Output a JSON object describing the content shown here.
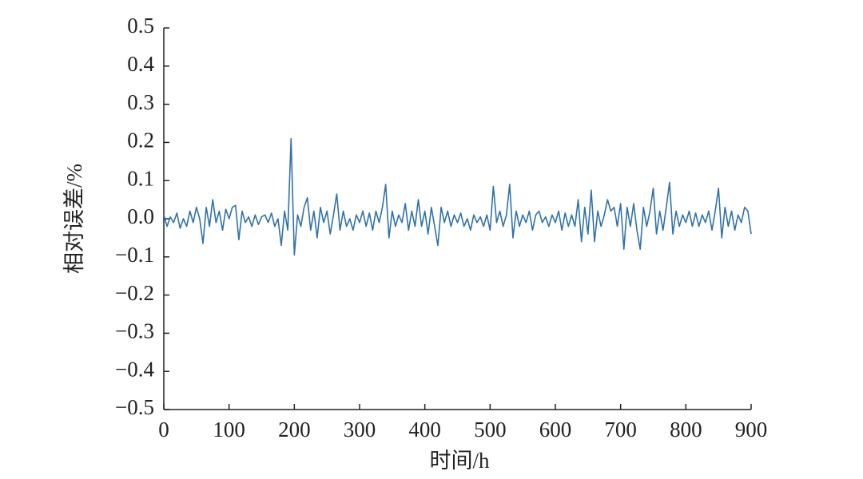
{
  "chart_data": {
    "type": "line",
    "xlabel": "时间/h",
    "ylabel": "相对误差/%",
    "color": "#2f72aa",
    "x": [
      0,
      5,
      10,
      15,
      20,
      25,
      30,
      35,
      40,
      45,
      50,
      55,
      60,
      65,
      70,
      75,
      80,
      85,
      90,
      95,
      100,
      105,
      110,
      115,
      120,
      125,
      130,
      135,
      140,
      145,
      150,
      155,
      160,
      165,
      170,
      175,
      180,
      185,
      190,
      195,
      200,
      205,
      210,
      215,
      220,
      225,
      230,
      235,
      240,
      245,
      250,
      255,
      260,
      265,
      270,
      275,
      280,
      285,
      290,
      295,
      300,
      305,
      310,
      315,
      320,
      325,
      330,
      335,
      340,
      345,
      350,
      355,
      360,
      365,
      370,
      375,
      380,
      385,
      390,
      395,
      400,
      405,
      410,
      415,
      420,
      425,
      430,
      435,
      440,
      445,
      450,
      455,
      460,
      465,
      470,
      475,
      480,
      485,
      490,
      495,
      500,
      505,
      510,
      515,
      520,
      525,
      530,
      535,
      540,
      545,
      550,
      555,
      560,
      565,
      570,
      575,
      580,
      585,
      590,
      595,
      600,
      605,
      610,
      615,
      620,
      625,
      630,
      635,
      640,
      645,
      650,
      655,
      660,
      665,
      670,
      675,
      680,
      685,
      690,
      695,
      700,
      705,
      710,
      715,
      720,
      725,
      730,
      735,
      740,
      745,
      750,
      755,
      760,
      765,
      770,
      775,
      780,
      785,
      790,
      795,
      800,
      805,
      810,
      815,
      820,
      825,
      830,
      835,
      840,
      845,
      850,
      855,
      860,
      865,
      870,
      875,
      880,
      885,
      890,
      895,
      900
    ],
    "values": [
      0.01,
      -0.02,
      0.005,
      -0.01,
      0.015,
      -0.025,
      0.0,
      -0.02,
      0.02,
      -0.01,
      0.03,
      0.0,
      -0.065,
      0.03,
      -0.02,
      0.05,
      -0.01,
      0.02,
      -0.03,
      0.025,
      0.0,
      0.03,
      0.035,
      -0.055,
      0.02,
      -0.01,
      0.005,
      -0.02,
      0.01,
      -0.015,
      0.005,
      0.01,
      -0.01,
      0.015,
      -0.02,
      0.0,
      -0.07,
      0.02,
      -0.03,
      0.21,
      -0.095,
      0.01,
      -0.02,
      0.03,
      0.055,
      -0.03,
      0.02,
      -0.05,
      0.03,
      -0.01,
      0.02,
      -0.04,
      0.01,
      0.065,
      -0.03,
      0.02,
      -0.02,
      0.0,
      -0.03,
      0.01,
      -0.01,
      0.02,
      -0.02,
      0.015,
      -0.03,
      0.02,
      -0.01,
      0.03,
      0.09,
      -0.05,
      0.02,
      -0.02,
      0.01,
      -0.01,
      0.04,
      -0.03,
      0.02,
      -0.02,
      0.05,
      -0.02,
      0.02,
      -0.04,
      0.03,
      -0.02,
      -0.07,
      0.03,
      -0.01,
      0.02,
      -0.02,
      0.01,
      -0.01,
      0.015,
      -0.02,
      0.0,
      -0.03,
      0.01,
      -0.01,
      0.005,
      -0.02,
      0.01,
      -0.03,
      0.085,
      -0.01,
      0.02,
      -0.02,
      0.01,
      0.09,
      -0.05,
      0.02,
      -0.02,
      0.01,
      -0.01,
      0.02,
      -0.03,
      0.01,
      0.02,
      -0.01,
      0.005,
      -0.02,
      0.01,
      -0.01,
      0.02,
      -0.03,
      0.015,
      -0.02,
      0.01,
      -0.02,
      0.05,
      -0.06,
      0.03,
      -0.04,
      0.075,
      -0.06,
      0.02,
      -0.02,
      0.01,
      0.05,
      0.02,
      0.03,
      -0.02,
      0.04,
      -0.08,
      0.03,
      -0.02,
      0.04,
      -0.03,
      -0.08,
      0.03,
      -0.02,
      0.02,
      0.08,
      -0.04,
      0.02,
      -0.03,
      0.03,
      0.095,
      -0.04,
      0.02,
      -0.02,
      0.01,
      -0.01,
      0.02,
      -0.02,
      0.015,
      -0.02,
      0.01,
      -0.01,
      0.02,
      -0.03,
      0.02,
      0.08,
      -0.05,
      0.03,
      -0.02,
      0.02,
      -0.03,
      0.01,
      -0.01,
      0.03,
      0.02,
      -0.04
    ],
    "xlim": [
      0,
      900
    ],
    "xticks": [
      0,
      100,
      200,
      300,
      400,
      500,
      600,
      700,
      800,
      900
    ],
    "ylim": [
      -0.5,
      0.5
    ],
    "yticks": [
      {
        "value": -0.5,
        "label": "−0.5"
      },
      {
        "value": -0.4,
        "label": "−0.4"
      },
      {
        "value": -0.3,
        "label": "−0.3"
      },
      {
        "value": -0.2,
        "label": "−0.2"
      },
      {
        "value": -0.1,
        "label": "−0.1"
      },
      {
        "value": 0,
        "label": "0.0"
      },
      0.1,
      0.2,
      0.3,
      0.4,
      0.5
    ]
  }
}
